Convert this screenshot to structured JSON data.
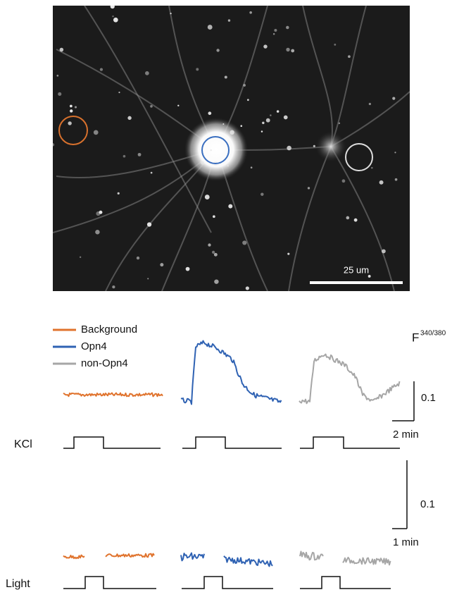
{
  "image": {
    "scale_bar": "25 um"
  },
  "legend": {
    "items": [
      "Background",
      "Opn4",
      "non-Opn4"
    ]
  },
  "units": {
    "main": "F",
    "superscript": "340/380"
  },
  "scale_bars": {
    "kcl": {
      "y": "0.1",
      "x": "2 min"
    },
    "light": {
      "y": "0.1",
      "x": "1 min"
    }
  },
  "rows": [
    "KCl",
    "Light"
  ]
}
